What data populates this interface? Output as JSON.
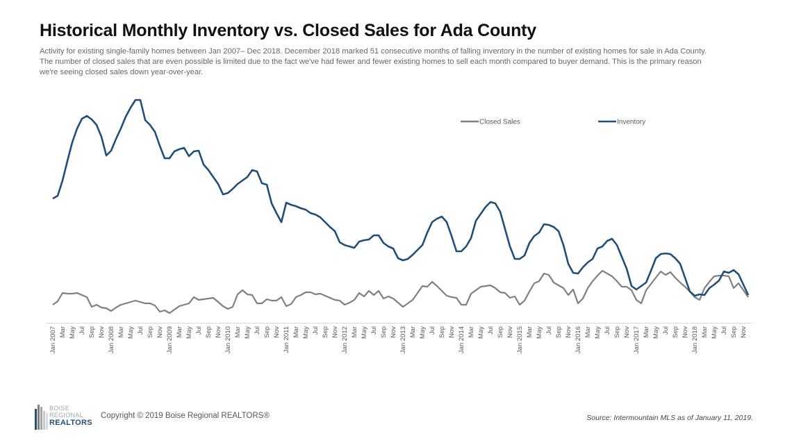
{
  "header": {
    "title": "Historical Monthly Inventory vs. Closed Sales for Ada County",
    "subtitle_lines": [
      "Activity for existing single-family homes between Jan 2007– Dec 2018. December 2018 marked 51 consecutive months of falling inventory in the number of existing homes for sale in Ada County.",
      "The number of closed sales that are even possible is limited due to the fact we've had fewer and fewer existing homes to sell each month compared to buyer demand. This is the primary reason",
      "we're seeing closed sales down year-over-year."
    ]
  },
  "chart_data": {
    "type": "line",
    "title": "Historical Monthly Inventory vs. Closed Sales for Ada County",
    "xlabel": "",
    "ylabel": "",
    "note": "y-axis unlabeled; values are estimates on an approximate homes-count scale",
    "ylim": [
      0,
      4600
    ],
    "grid": false,
    "legend_position": "top-right",
    "x_tick_labels": [
      "Jan 2007",
      "Mar",
      "May",
      "Jul",
      "Sep",
      "Nov",
      "Jan 2008",
      "Mar",
      "May",
      "Jul",
      "Sep",
      "Nov",
      "Jan 2009",
      "Mar",
      "May",
      "Jul",
      "Sep",
      "Nov",
      "Jan 2010",
      "Mar",
      "May",
      "Jul",
      "Sep",
      "Nov",
      "Jan 2011",
      "Mar",
      "May",
      "Jul",
      "Sep",
      "Nov",
      "Jan 2012",
      "Mar",
      "May",
      "Jul",
      "Sep",
      "Nov",
      "Jan 2013",
      "Mar",
      "May",
      "Jul",
      "Sep",
      "Nov",
      "Jan 2014",
      "Mar",
      "May",
      "Jul",
      "Sep",
      "Nov",
      "Jan 2015",
      "Mar",
      "May",
      "Jul",
      "Sep",
      "Nov",
      "Jan 2016",
      "Mar",
      "May",
      "Jul",
      "Sep",
      "Nov",
      "Jan 2017",
      "Mar",
      "May",
      "Jul",
      "Sep",
      "Nov",
      "Jan 2018",
      "Mar",
      "May",
      "Jul",
      "Sep",
      "Nov"
    ],
    "x_start": "Jan 2007",
    "x_end": "Dec 2018",
    "series": [
      {
        "name": "Closed Sales",
        "color": "#7f7f7f",
        "values": [
          364,
          434,
          602,
          588,
          588,
          602,
          560,
          518,
          322,
          364,
          308,
          294,
          238,
          308,
          364,
          392,
          420,
          448,
          420,
          392,
          392,
          350,
          224,
          252,
          196,
          266,
          336,
          364,
          392,
          518,
          462,
          476,
          490,
          504,
          420,
          336,
          280,
          322,
          574,
          658,
          574,
          560,
          392,
          392,
          476,
          448,
          448,
          518,
          336,
          378,
          518,
          560,
          616,
          616,
          574,
          588,
          546,
          504,
          462,
          448,
          364,
          406,
          462,
          602,
          532,
          644,
          560,
          644,
          490,
          532,
          490,
          406,
          322,
          392,
          462,
          602,
          742,
          728,
          826,
          742,
          644,
          546,
          518,
          504,
          364,
          364,
          588,
          658,
          728,
          742,
          756,
          700,
          616,
          602,
          504,
          532,
          364,
          448,
          630,
          798,
          840,
          994,
          966,
          812,
          756,
          700,
          560,
          672,
          392,
          490,
          700,
          840,
          952,
          1050,
          994,
          938,
          840,
          728,
          728,
          658,
          462,
          392,
          658,
          784,
          910,
          1036,
          966,
          1022,
          910,
          812,
          728,
          630,
          518,
          462,
          700,
          826,
          938,
          952,
          952,
          938,
          700,
          798,
          658,
          518
        ]
      },
      {
        "name": "Inventory",
        "color": "#1f4e79",
        "values": [
          2506,
          2562,
          2870,
          3262,
          3640,
          3920,
          4116,
          4172,
          4102,
          3990,
          3752,
          3374,
          3472,
          3710,
          3920,
          4158,
          4340,
          4494,
          4494,
          4088,
          3990,
          3850,
          3570,
          3318,
          3318,
          3458,
          3500,
          3528,
          3360,
          3458,
          3472,
          3192,
          3080,
          2940,
          2800,
          2590,
          2618,
          2702,
          2800,
          2870,
          2940,
          3080,
          3052,
          2814,
          2786,
          2408,
          2212,
          2030,
          2422,
          2380,
          2352,
          2310,
          2282,
          2212,
          2184,
          2128,
          2030,
          1932,
          1848,
          1624,
          1568,
          1540,
          1512,
          1638,
          1666,
          1680,
          1764,
          1764,
          1610,
          1540,
          1498,
          1302,
          1260,
          1288,
          1372,
          1470,
          1568,
          1820,
          2030,
          2100,
          2142,
          2030,
          1750,
          1442,
          1442,
          1540,
          1708,
          2058,
          2198,
          2338,
          2436,
          2408,
          2240,
          1890,
          1540,
          1288,
          1288,
          1358,
          1610,
          1750,
          1820,
          1988,
          1974,
          1932,
          1848,
          1568,
          1190,
          1008,
          994,
          1120,
          1218,
          1288,
          1498,
          1540,
          1652,
          1694,
          1568,
          1330,
          1092,
          742,
          672,
          742,
          812,
          1050,
          1302,
          1386,
          1400,
          1386,
          1302,
          1190,
          910,
          630,
          546,
          574,
          560,
          700,
          770,
          854,
          1036,
          1008,
          1064,
          980,
          770,
          560
        ]
      }
    ]
  },
  "footer": {
    "logo_text": [
      "BOISE",
      "REGIONAL",
      "REALTORS"
    ],
    "copyright": "Copyright © 2019 Boise Regional REALTORS®",
    "source": "Source: Intermountain MLS as of January 11, 2019."
  }
}
